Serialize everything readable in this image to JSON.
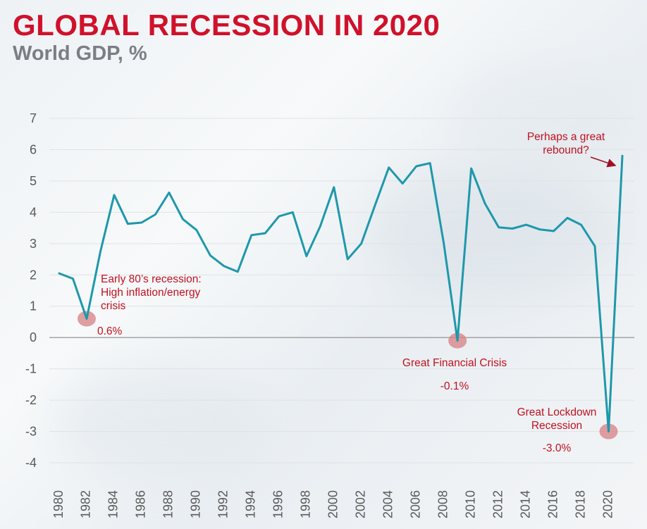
{
  "header": {
    "title": "GLOBAL RECESSION IN 2020",
    "subtitle": "World GDP, %"
  },
  "colors": {
    "title": "#d0112b",
    "line": "#1e98ab",
    "annotation": "#c0111f",
    "marker": "#d77f82",
    "zero_line": "#8a8a8a",
    "axis_text": "#595959"
  },
  "chart_data": {
    "type": "line",
    "title": "GLOBAL RECESSION IN 2020",
    "subtitle": "World GDP, %",
    "xlabel": "",
    "ylabel": "World GDP, %",
    "ylim": [
      -4,
      7
    ],
    "xlim": [
      1980,
      2021
    ],
    "yticks": [
      "7",
      "6",
      "5",
      "4",
      "3",
      "2",
      "1",
      "0",
      "-1",
      "-2",
      "-3",
      "-4"
    ],
    "xticks": [
      "1980",
      "1982",
      "1984",
      "1986",
      "1988",
      "1990",
      "1992",
      "1994",
      "1996",
      "1998",
      "2000",
      "2002",
      "2004",
      "2006",
      "2008",
      "2010",
      "2012",
      "2014",
      "2016",
      "2018",
      "2020"
    ],
    "grid": true,
    "series": [
      {
        "name": "World GDP growth",
        "x": [
          1980,
          1981,
          1982,
          1983,
          1984,
          1985,
          1986,
          1987,
          1988,
          1989,
          1990,
          1991,
          1992,
          1993,
          1994,
          1995,
          1996,
          1997,
          1998,
          1999,
          2000,
          2001,
          2002,
          2003,
          2004,
          2005,
          2006,
          2007,
          2008,
          2009,
          2010,
          2011,
          2012,
          2013,
          2014,
          2015,
          2016,
          2017,
          2018,
          2019,
          2020,
          2021
        ],
        "values": [
          2.05,
          1.88,
          0.6,
          2.75,
          4.55,
          3.63,
          3.67,
          3.93,
          4.63,
          3.78,
          3.43,
          2.62,
          2.28,
          2.1,
          3.27,
          3.33,
          3.87,
          4.0,
          2.6,
          3.55,
          4.8,
          2.5,
          3.0,
          4.23,
          5.43,
          4.92,
          5.47,
          5.57,
          3.0,
          -0.1,
          5.4,
          4.28,
          3.52,
          3.48,
          3.6,
          3.45,
          3.4,
          3.82,
          3.6,
          2.92,
          -3.0,
          5.8
        ]
      }
    ],
    "annotations": [
      {
        "name": "early-80s",
        "year": 1982,
        "value": 0.6,
        "lines": [
          "Early 80’s recession:",
          "High inflation/energy",
          "crisis"
        ],
        "value_label": "0.6%"
      },
      {
        "name": "gfc",
        "year": 2009,
        "value": -0.1,
        "lines": [
          "Great Financial Crisis"
        ],
        "value_label": "-0.1%"
      },
      {
        "name": "lockdown",
        "year": 2020,
        "value": -3.0,
        "lines": [
          "Great Lockdown",
          "Recession"
        ],
        "value_label": "-3.0%"
      },
      {
        "name": "rebound",
        "year": 2021,
        "value": 5.8,
        "lines": [
          "Perhaps a great",
          "rebound?"
        ],
        "value_label": ""
      }
    ]
  }
}
